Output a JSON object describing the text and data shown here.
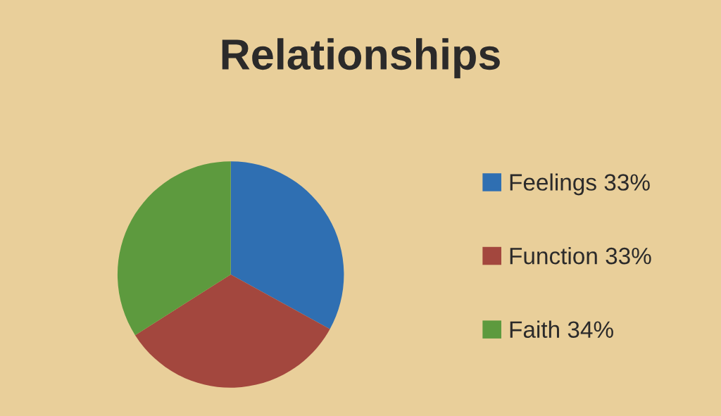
{
  "chart_data": {
    "type": "pie",
    "title": "Relationships",
    "categories": [
      "Feelings 33%",
      "Function 33%",
      "Faith 34%"
    ],
    "values": [
      33,
      33,
      34
    ],
    "colors": [
      "#2f6fb2",
      "#a3473e",
      "#5d9a3e"
    ],
    "legend": "right"
  }
}
